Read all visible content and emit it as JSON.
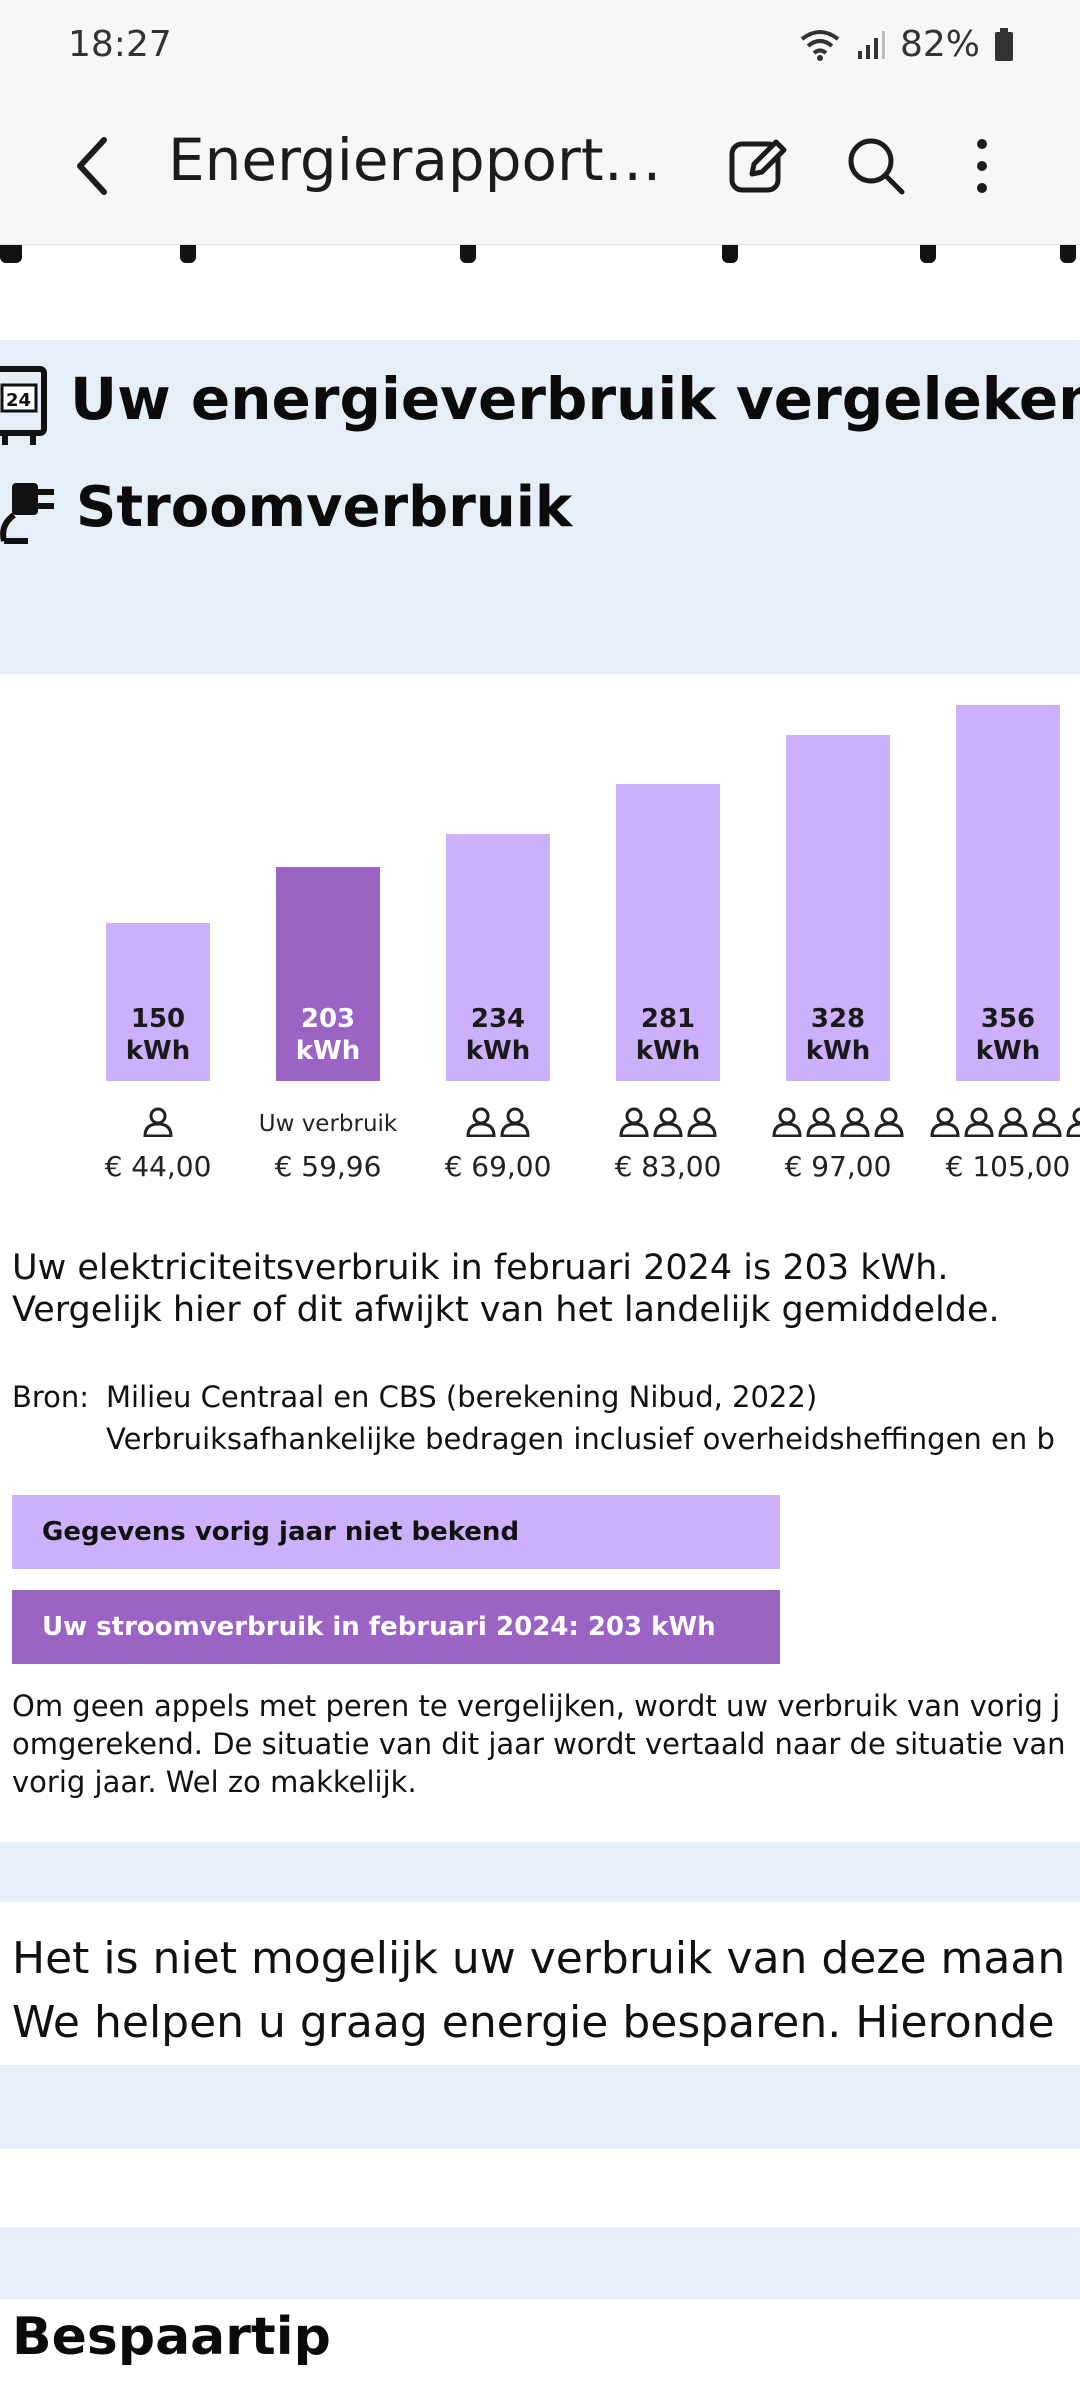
{
  "status_bar": {
    "time": "18:27",
    "battery": "82%"
  },
  "app_bar": {
    "title": "Energierapport_F..."
  },
  "document": {
    "heading": "Uw energieverbruik vergeleken me",
    "subheading": "Stroomverbruik",
    "chart_data": {
      "type": "bar",
      "unit": "kWh",
      "categories": [
        "1 persoon",
        "Uw verbruik",
        "2 personen",
        "3 personen",
        "4 personen",
        "5 personen"
      ],
      "values": [
        150,
        203,
        234,
        281,
        328,
        356
      ],
      "value_labels": [
        "150",
        "203",
        "234",
        "281",
        "328",
        "356"
      ],
      "unit_label": "kWh",
      "x_labels": [
        "",
        "Uw verbruik",
        "",
        "",
        "",
        ""
      ],
      "persons": [
        1,
        0,
        2,
        3,
        4,
        5
      ],
      "prices": [
        "€ 44,00",
        "€ 59,96",
        "€ 69,00",
        "€ 83,00",
        "€ 97,00",
        "€ 105,00"
      ],
      "highlight_index": 1,
      "colors": {
        "bar": "#cdb0fb",
        "highlight": "#9b63c4"
      },
      "ylim": [
        0,
        400
      ]
    },
    "summary_line1": "Uw elektriciteitsverbruik in februari 2024 is 203 kWh.",
    "summary_line2": "Vergelijk hier of dit afwijkt van het landelijk gemiddelde.",
    "source_label": "Bron:",
    "source_line1": "Milieu Centraal en CBS (berekening Nibud, 2022)",
    "source_line2": "Verbruiksafhankelijke bedragen inclusief overheidsheffingen en b",
    "box_previous_year": "Gegevens vorig jaar niet bekend",
    "box_current": "Uw stroomverbruik in februari 2024: 203 kWh",
    "note_line1": "Om geen appels met peren te vergelijken, wordt uw verbruik van vorig j",
    "note_line2": "omgerekend. De situatie van dit jaar wordt vertaald naar de situatie van",
    "note_line3": "vorig jaar. Wel zo makkelijk.",
    "message_line1": "Het is niet mogelijk uw verbruik van deze maan",
    "message_line2": "We helpen u graag energie besparen. Hieronde",
    "tip_heading": "Bespaartip"
  },
  "icons": [
    "back-arrow-icon",
    "edit-icon",
    "search-icon",
    "more-vert-icon",
    "wifi-icon",
    "signal-icon",
    "battery-icon",
    "meter-icon",
    "plug-icon",
    "person-icon"
  ]
}
